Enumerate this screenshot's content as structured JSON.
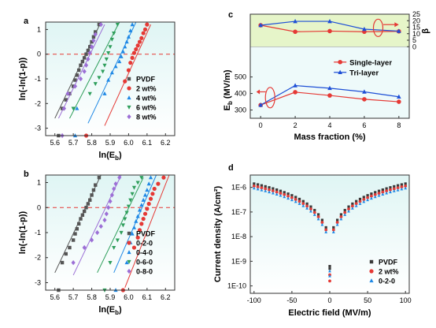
{
  "chart_data": [
    {
      "panel": "a",
      "type": "scatter",
      "xlabel": "ln(E_b)",
      "ylabel": "ln(-ln(1-p))",
      "xlim": [
        5.55,
        6.25
      ],
      "ylim": [
        -3.3,
        1.3
      ],
      "xticks": [
        "5.6",
        "5.7",
        "5.8",
        "5.9",
        "6.0",
        "6.1",
        "6.2"
      ],
      "yticks": [
        "-3",
        "-2",
        "-1",
        "0",
        "1"
      ],
      "reference_line_y": 0,
      "legend_position": "lower-right",
      "series": [
        {
          "name": "PVDF",
          "color": "#555555",
          "marker": "square",
          "x": [
            5.62,
            5.64,
            5.66,
            5.68,
            5.7,
            5.71,
            5.72,
            5.73,
            5.74,
            5.75,
            5.76,
            5.77,
            5.78,
            5.79,
            5.8,
            5.81,
            5.82,
            5.84
          ],
          "y": [
            -3.3,
            -2.2,
            -1.85,
            -1.6,
            -1.3,
            -1.05,
            -0.85,
            -0.65,
            -0.45,
            -0.3,
            -0.15,
            0.0,
            0.15,
            0.3,
            0.5,
            0.7,
            0.9,
            1.2
          ],
          "fit": [
            [
              5.6,
              -2.6
            ],
            [
              5.85,
              1.3
            ]
          ]
        },
        {
          "name": "2 wt%",
          "color": "#e53935",
          "marker": "circle",
          "x": [
            5.77,
            5.98,
            6.0,
            6.01,
            6.02,
            6.03,
            6.04,
            6.05,
            6.06,
            6.07,
            6.08,
            6.09,
            6.1
          ],
          "y": [
            -3.3,
            -1.1,
            -0.65,
            -0.35,
            -0.15,
            0.05,
            0.2,
            0.35,
            0.5,
            0.65,
            0.85,
            1.0,
            1.2
          ],
          "fit": [
            [
              5.87,
              -2.9
            ],
            [
              6.12,
              1.2
            ]
          ]
        },
        {
          "name": "4 wt%",
          "color": "#1e88e5",
          "marker": "triangle",
          "x": [
            5.71,
            5.72,
            5.87,
            5.89,
            5.91,
            5.93,
            5.95,
            5.96,
            5.97,
            5.98,
            5.99,
            6.0,
            6.01,
            6.02
          ],
          "y": [
            -3.3,
            -2.2,
            -1.6,
            -1.05,
            -0.75,
            -0.5,
            -0.3,
            -0.1,
            0.1,
            0.3,
            0.5,
            0.7,
            0.95,
            1.2
          ],
          "fit": [
            [
              5.78,
              -2.8
            ],
            [
              6.04,
              1.3
            ]
          ]
        },
        {
          "name": "6 wt%",
          "color": "#2e9e5b",
          "marker": "triangle-down",
          "x": [
            5.7,
            5.79,
            5.82,
            5.84,
            5.86,
            5.87,
            5.88,
            5.89,
            5.9,
            5.91,
            5.92,
            5.94
          ],
          "y": [
            -2.2,
            -1.6,
            -1.2,
            -0.95,
            -0.7,
            -0.45,
            -0.2,
            0.05,
            0.3,
            0.6,
            0.85,
            1.2
          ],
          "fit": [
            [
              5.68,
              -2.6
            ],
            [
              5.95,
              1.3
            ]
          ]
        },
        {
          "name": "8 wt%",
          "color": "#9c6fd6",
          "marker": "diamond",
          "x": [
            5.64,
            5.65,
            5.67,
            5.71,
            5.74,
            5.76,
            5.77,
            5.78,
            5.79,
            5.8,
            5.81,
            5.82,
            5.85
          ],
          "y": [
            -3.3,
            -2.2,
            -1.6,
            -1.3,
            -1.0,
            -0.7,
            -0.45,
            -0.2,
            0.05,
            0.3,
            0.55,
            0.8,
            1.2
          ],
          "fit": [
            [
              5.62,
              -2.6
            ],
            [
              5.87,
              1.2
            ]
          ]
        }
      ]
    },
    {
      "panel": "b",
      "type": "scatter",
      "xlabel": "ln(E_b)",
      "ylabel": "ln(-ln(1-p))",
      "xlim": [
        5.55,
        6.25
      ],
      "ylim": [
        -3.3,
        1.3
      ],
      "xticks": [
        "5.6",
        "5.7",
        "5.8",
        "5.9",
        "6.0",
        "6.1",
        "6.2"
      ],
      "yticks": [
        "-3",
        "-2",
        "-1",
        "0",
        "1"
      ],
      "reference_line_y": 0,
      "legend_position": "lower-right",
      "series": [
        {
          "name": "PVDF",
          "color": "#555555",
          "marker": "square",
          "x": [
            5.62,
            5.64,
            5.66,
            5.68,
            5.7,
            5.71,
            5.72,
            5.73,
            5.74,
            5.75,
            5.76,
            5.77,
            5.78,
            5.79,
            5.8,
            5.81,
            5.82,
            5.84
          ],
          "y": [
            -3.3,
            -2.2,
            -1.85,
            -1.6,
            -1.3,
            -1.05,
            -0.85,
            -0.65,
            -0.45,
            -0.3,
            -0.15,
            0.0,
            0.15,
            0.3,
            0.5,
            0.7,
            0.9,
            1.2
          ],
          "fit": [
            [
              5.6,
              -2.6
            ],
            [
              5.85,
              1.3
            ]
          ]
        },
        {
          "name": "0-2-0",
          "color": "#e53935",
          "marker": "circle",
          "x": [
            5.97,
            6.03,
            6.05,
            6.06,
            6.07,
            6.08,
            6.09,
            6.1,
            6.11,
            6.12,
            6.13,
            6.14,
            6.16,
            6.19
          ],
          "y": [
            -3.3,
            -1.6,
            -1.2,
            -0.9,
            -0.65,
            -0.45,
            -0.25,
            -0.05,
            0.15,
            0.35,
            0.55,
            0.75,
            0.95,
            1.2
          ],
          "fit": [
            [
              5.98,
              -3.2
            ],
            [
              6.22,
              1.3
            ]
          ]
        },
        {
          "name": "0-4-0",
          "color": "#1e88e5",
          "marker": "triangle",
          "x": [
            5.93,
            5.99,
            6.01,
            6.02,
            6.03,
            6.04,
            6.05,
            6.06,
            6.07,
            6.08,
            6.09,
            6.1,
            6.11,
            6.12
          ],
          "y": [
            -3.3,
            -2.2,
            -1.4,
            -1.05,
            -0.8,
            -0.55,
            -0.35,
            -0.1,
            0.1,
            0.3,
            0.5,
            0.7,
            0.95,
            1.2
          ],
          "fit": [
            [
              5.92,
              -2.6
            ],
            [
              6.15,
              1.3
            ]
          ]
        },
        {
          "name": "0-6-0",
          "color": "#2e9e5b",
          "marker": "triangle-down",
          "x": [
            5.87,
            5.9,
            5.92,
            5.94,
            5.96,
            5.97,
            5.98,
            5.99,
            6.0,
            6.01,
            6.02,
            6.03,
            6.05,
            6.07
          ],
          "y": [
            -3.3,
            -2.2,
            -1.6,
            -1.3,
            -1.0,
            -0.7,
            -0.45,
            -0.2,
            0.05,
            0.3,
            0.55,
            0.8,
            1.0,
            1.2
          ],
          "fit": [
            [
              5.83,
              -2.6
            ],
            [
              6.08,
              1.2
            ]
          ]
        },
        {
          "name": "0-8-0",
          "color": "#9c6fd6",
          "marker": "diamond",
          "x": [
            5.7,
            5.76,
            5.8,
            5.83,
            5.85,
            5.87,
            5.88,
            5.89,
            5.9,
            5.91,
            5.92,
            5.93,
            5.95
          ],
          "y": [
            -2.2,
            -1.6,
            -1.3,
            -1.0,
            -0.75,
            -0.5,
            -0.25,
            0.0,
            0.25,
            0.5,
            0.75,
            0.95,
            1.2
          ],
          "fit": [
            [
              5.7,
              -2.7
            ],
            [
              5.96,
              1.3
            ]
          ]
        }
      ]
    },
    {
      "panel": "c",
      "type": "line",
      "xlabel": "Mass fraction (%)",
      "ylabel_left": "E_b (MV/m)",
      "ylabel_right": "β",
      "x": [
        0,
        2,
        4,
        6,
        8
      ],
      "xticks": [
        "0",
        "2",
        "4",
        "6",
        "8"
      ],
      "xlim": [
        -0.6,
        8.6
      ],
      "ylim_left": [
        250,
        880
      ],
      "yticks_left": [
        "300",
        "400",
        "500"
      ],
      "ylim_right": [
        -55,
        25
      ],
      "yticks_right": [
        "0",
        "5",
        "10",
        "15",
        "20",
        "25"
      ],
      "legend_position": "middle-right",
      "series": [
        {
          "name": "Single-layer",
          "color": "#e53935",
          "marker": "circle",
          "eb": [
            330,
            408,
            388,
            365,
            350
          ],
          "beta": [
            16.5,
            11.5,
            12.0,
            11.5,
            11.8
          ]
        },
        {
          "name": "Tri-layer",
          "color": "#1e4fd6",
          "marker": "triangle",
          "eb": [
            330,
            448,
            432,
            410,
            380
          ],
          "beta": [
            16.5,
            19.5,
            19.5,
            13.5,
            12.0
          ]
        }
      ]
    },
    {
      "panel": "d",
      "type": "scatter",
      "xlabel": "Electric field (MV/m)",
      "ylabel": "Current density (A/cm²)",
      "xlim": [
        -105,
        105
      ],
      "ylim_log10": [
        -10.3,
        -5.5
      ],
      "log_y": true,
      "xticks": [
        "-100",
        "-50",
        "0",
        "50",
        "100"
      ],
      "yticks": [
        "1E-10",
        "1E-9",
        "1E-8",
        "1E-7",
        "1E-6"
      ],
      "legend_position": "lower-right",
      "series": [
        {
          "name": "PVDF",
          "color": "#3a3a3a",
          "marker": "square",
          "scale": 1.0,
          "origin_log": [
            -9.2,
            -9.3
          ]
        },
        {
          "name": "2 wt%",
          "color": "#e53935",
          "marker": "circle",
          "scale": 0.8,
          "origin_log": [
            -9.55,
            -9.8
          ]
        },
        {
          "name": "0-2-0",
          "color": "#1e88e5",
          "marker": "triangle",
          "scale": 0.65,
          "origin_log": [
            -9.4,
            -9.6
          ]
        }
      ]
    }
  ]
}
